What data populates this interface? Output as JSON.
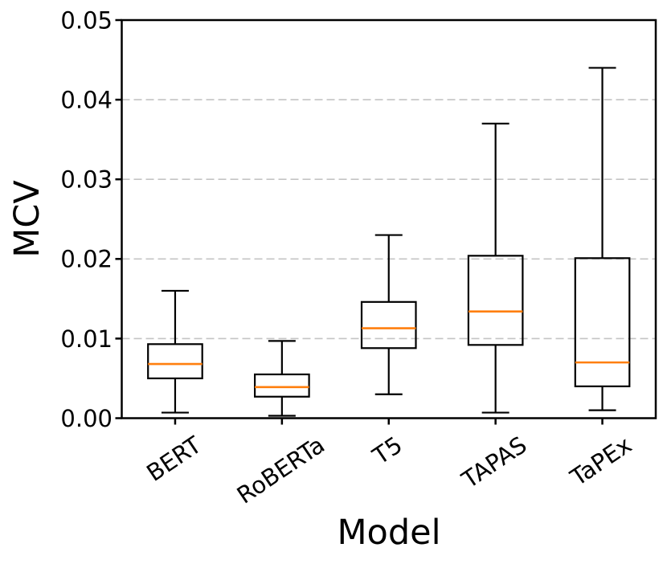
{
  "figure": {
    "background_color": "#ffffff",
    "text_color": "#000000"
  },
  "chart_data": {
    "type": "boxplot",
    "title": "",
    "xlabel": "Model",
    "ylabel": "MCV",
    "ylim": [
      0.0,
      0.05
    ],
    "y_ticks": [
      {
        "value": 0.0,
        "label": "0.00"
      },
      {
        "value": 0.01,
        "label": "0.01"
      },
      {
        "value": 0.02,
        "label": "0.02"
      },
      {
        "value": 0.03,
        "label": "0.03"
      },
      {
        "value": 0.04,
        "label": "0.04"
      },
      {
        "value": 0.05,
        "label": "0.05"
      }
    ],
    "grid": {
      "axis": "y",
      "style": "dashed",
      "color": "#c4c4c4"
    },
    "legend": "none",
    "outliers_shown": false,
    "box_edge_color": "#000000",
    "median_color": "#ff7f0e",
    "categories": [
      "BERT",
      "RoBERTa",
      "T5",
      "TAPAS",
      "TaPEx"
    ],
    "boxes": [
      {
        "label": "BERT",
        "whisker_low": 0.0007,
        "q1": 0.005,
        "median": 0.0068,
        "q3": 0.0093,
        "whisker_high": 0.016
      },
      {
        "label": "RoBERTa",
        "whisker_low": 0.0003,
        "q1": 0.0027,
        "median": 0.0039,
        "q3": 0.0055,
        "whisker_high": 0.0097
      },
      {
        "label": "T5",
        "whisker_low": 0.003,
        "q1": 0.0088,
        "median": 0.0113,
        "q3": 0.0146,
        "whisker_high": 0.023
      },
      {
        "label": "TAPAS",
        "whisker_low": 0.0007,
        "q1": 0.0092,
        "median": 0.0134,
        "q3": 0.0204,
        "whisker_high": 0.037
      },
      {
        "label": "TaPEx",
        "whisker_low": 0.001,
        "q1": 0.004,
        "median": 0.007,
        "q3": 0.0201,
        "whisker_high": 0.044
      }
    ]
  }
}
